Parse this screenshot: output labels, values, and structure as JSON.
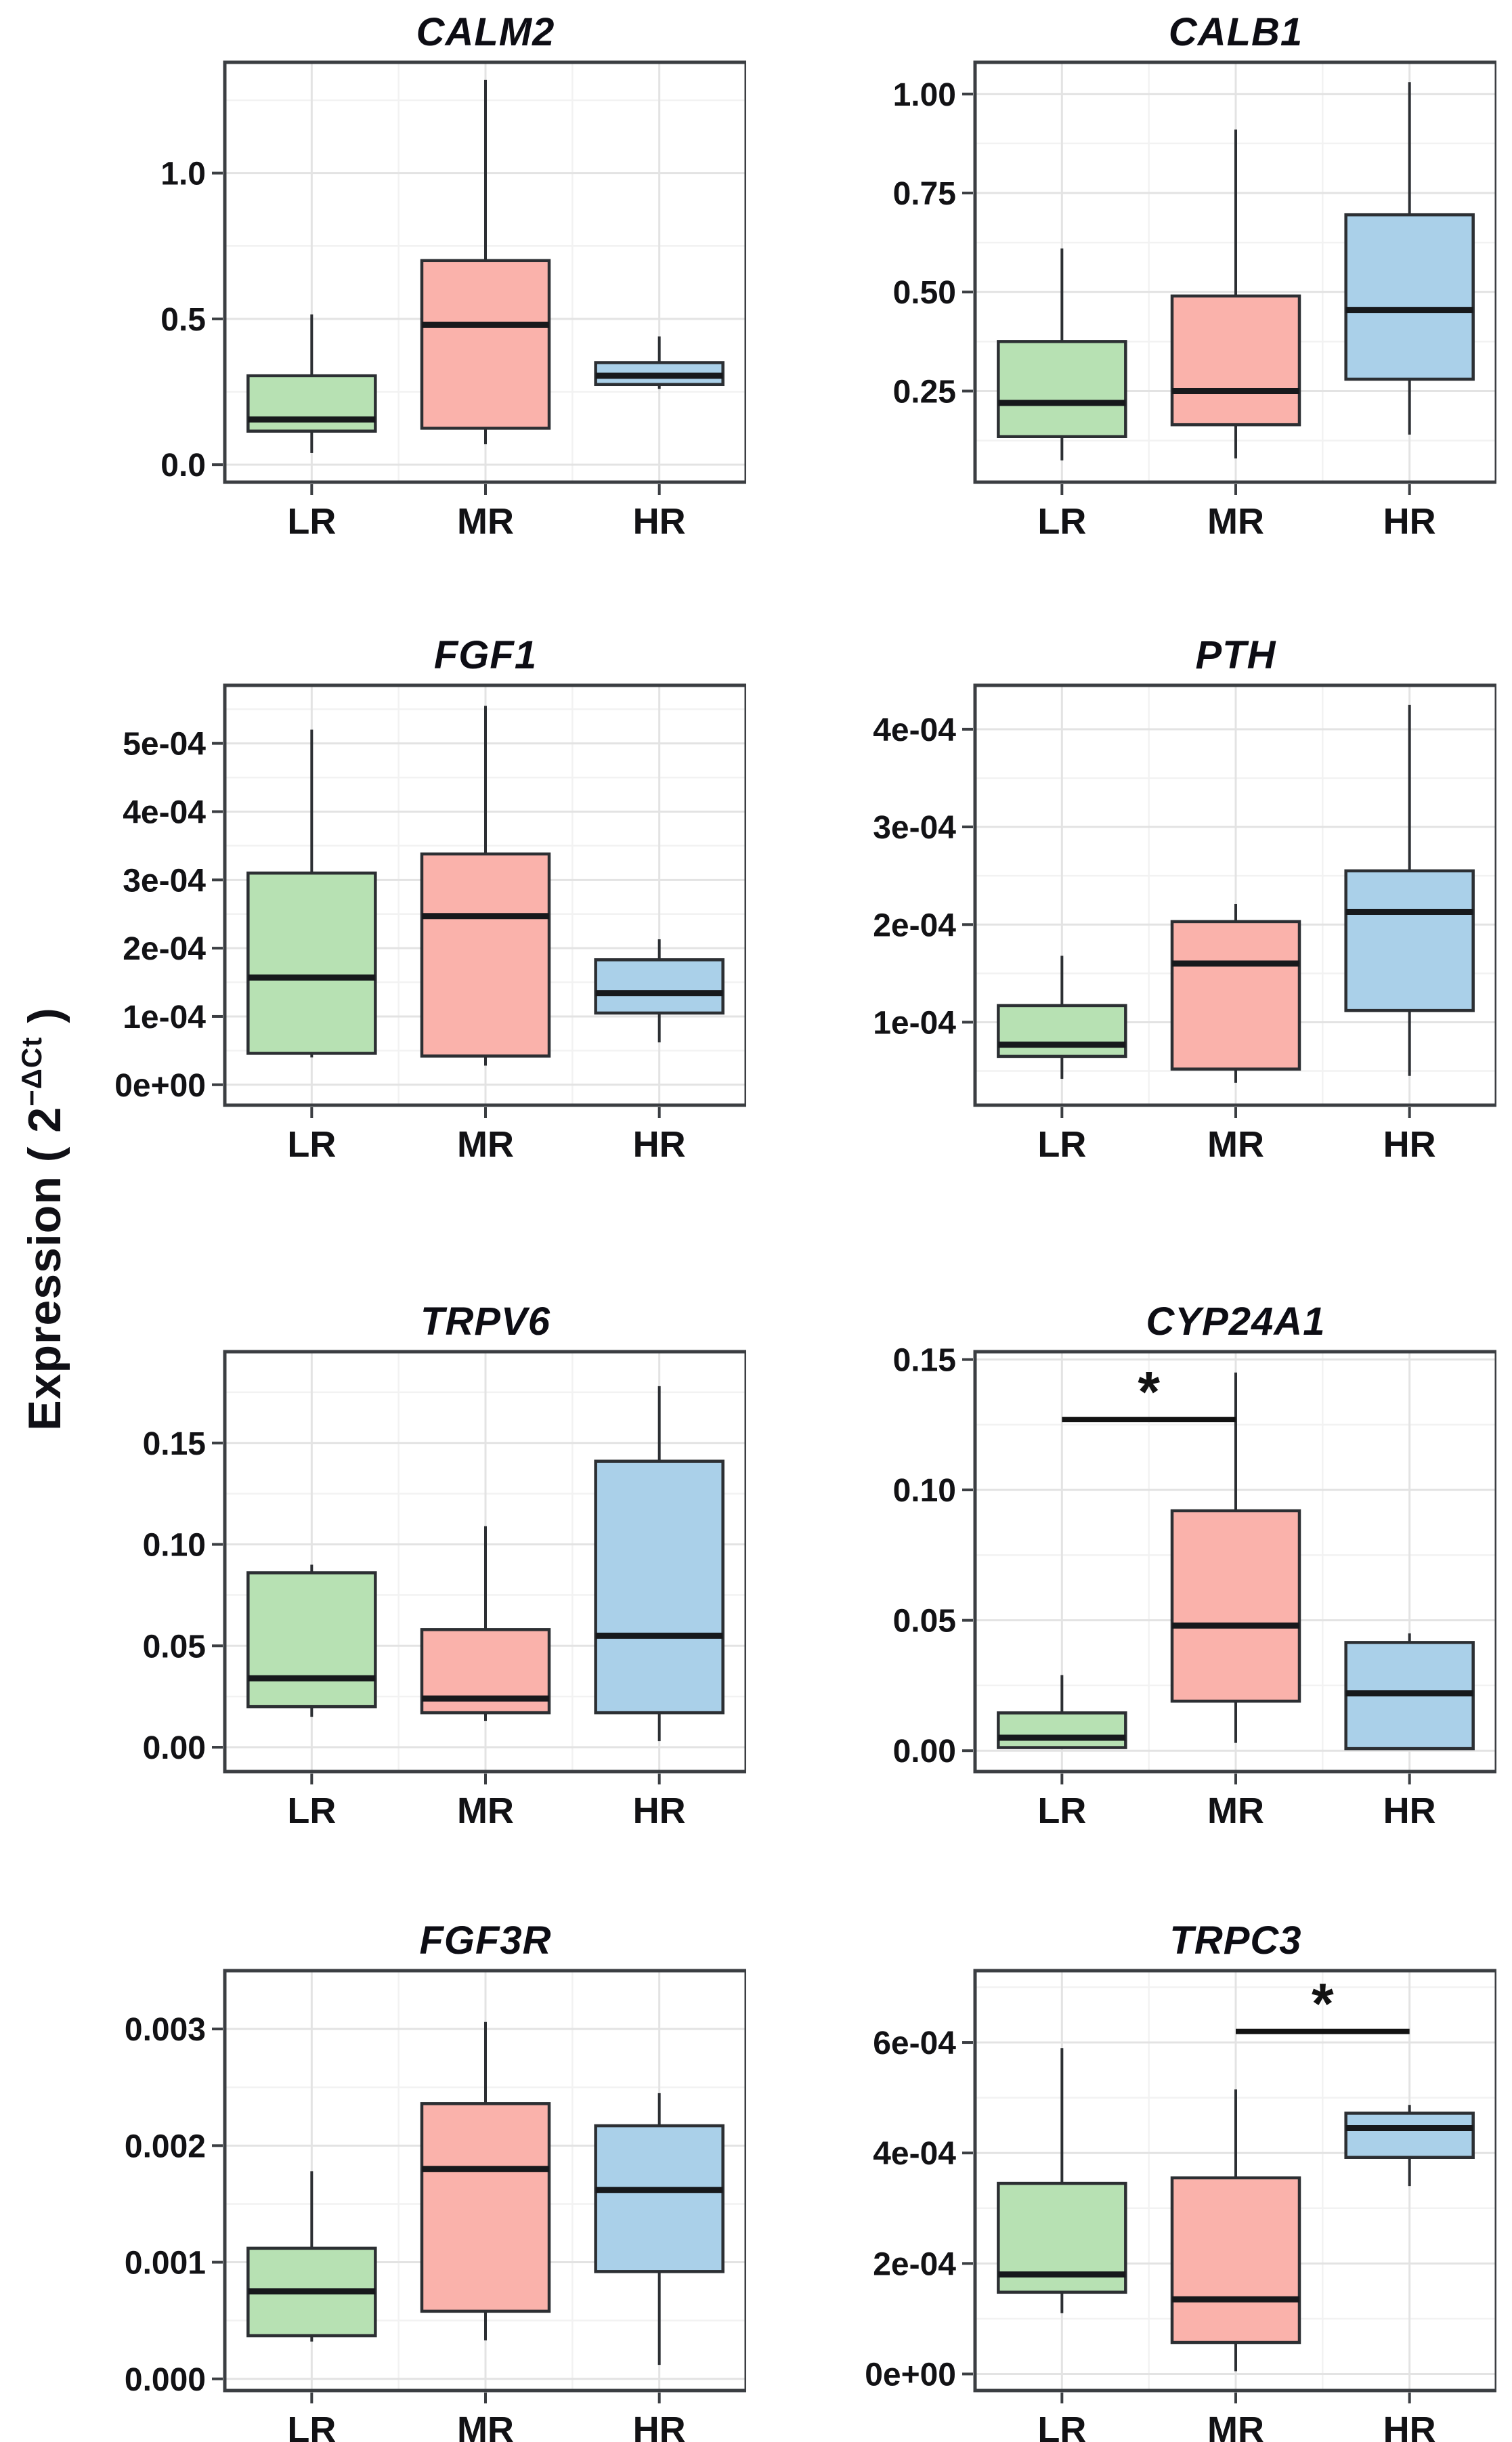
{
  "figure_type": "boxplot-grid",
  "ylabel": {
    "prefix": "Expression ( 2",
    "sup": "−ΔCt",
    "suffix": " )"
  },
  "colors": {
    "LR": "#b7e1b3",
    "MR": "#fab2ab",
    "HR": "#aad0e9",
    "panel_bg": "#ffffff",
    "grid_major": "#e3e3e3",
    "grid_minor": "#f2f2f2",
    "panel_border": "#3b3e42",
    "box_stroke": "#2c2f33",
    "median": "#17191c",
    "text": "#121215",
    "significance": "#121212"
  },
  "chart_data": [
    {
      "type": "box",
      "title": "CALM2",
      "categories": [
        "LR",
        "MR",
        "HR"
      ],
      "ylim": [
        -0.06,
        1.38
      ],
      "yticks": [
        {
          "v": 0.0,
          "label": "0.0"
        },
        {
          "v": 0.5,
          "label": "0.5"
        },
        {
          "v": 1.0,
          "label": "1.0"
        }
      ],
      "boxes": [
        {
          "category": "LR",
          "whisker_low": 0.04,
          "q1": 0.115,
          "median": 0.155,
          "q3": 0.305,
          "whisker_high": 0.515
        },
        {
          "category": "MR",
          "whisker_low": 0.07,
          "q1": 0.125,
          "median": 0.48,
          "q3": 0.7,
          "whisker_high": 1.32
        },
        {
          "category": "HR",
          "whisker_low": 0.26,
          "q1": 0.275,
          "median": 0.305,
          "q3": 0.35,
          "whisker_high": 0.44
        }
      ]
    },
    {
      "type": "box",
      "title": "CALB1",
      "categories": [
        "LR",
        "MR",
        "HR"
      ],
      "ylim": [
        0.02,
        1.08
      ],
      "yticks": [
        {
          "v": 0.25,
          "label": "0.25"
        },
        {
          "v": 0.5,
          "label": "0.50"
        },
        {
          "v": 0.75,
          "label": "0.75"
        },
        {
          "v": 1.0,
          "label": "1.00"
        }
      ],
      "boxes": [
        {
          "category": "LR",
          "whisker_low": 0.075,
          "q1": 0.135,
          "median": 0.22,
          "q3": 0.375,
          "whisker_high": 0.61
        },
        {
          "category": "MR",
          "whisker_low": 0.08,
          "q1": 0.165,
          "median": 0.25,
          "q3": 0.49,
          "whisker_high": 0.91
        },
        {
          "category": "HR",
          "whisker_low": 0.14,
          "q1": 0.28,
          "median": 0.455,
          "q3": 0.695,
          "whisker_high": 1.03
        }
      ]
    },
    {
      "type": "box",
      "title": "FGF1",
      "categories": [
        "LR",
        "MR",
        "HR"
      ],
      "ylim": [
        -3e-05,
        0.000585
      ],
      "yticks": [
        {
          "v": 0.0,
          "label": "0e+00"
        },
        {
          "v": 0.0001,
          "label": "1e-04"
        },
        {
          "v": 0.0002,
          "label": "2e-04"
        },
        {
          "v": 0.0003,
          "label": "3e-04"
        },
        {
          "v": 0.0004,
          "label": "4e-04"
        },
        {
          "v": 0.0005,
          "label": "5e-04"
        }
      ],
      "boxes": [
        {
          "category": "LR",
          "whisker_low": 4e-05,
          "q1": 4.6e-05,
          "median": 0.000157,
          "q3": 0.00031,
          "whisker_high": 0.00052
        },
        {
          "category": "MR",
          "whisker_low": 2.8e-05,
          "q1": 4.2e-05,
          "median": 0.000247,
          "q3": 0.000338,
          "whisker_high": 0.000555
        },
        {
          "category": "HR",
          "whisker_low": 6.2e-05,
          "q1": 0.000105,
          "median": 0.000134,
          "q3": 0.000183,
          "whisker_high": 0.000213
        }
      ]
    },
    {
      "type": "box",
      "title": "PTH",
      "categories": [
        "LR",
        "MR",
        "HR"
      ],
      "ylim": [
        1.5e-05,
        0.000445
      ],
      "yticks": [
        {
          "v": 0.0001,
          "label": "1e-04"
        },
        {
          "v": 0.0002,
          "label": "2e-04"
        },
        {
          "v": 0.0003,
          "label": "3e-04"
        },
        {
          "v": 0.0004,
          "label": "4e-04"
        }
      ],
      "boxes": [
        {
          "category": "LR",
          "whisker_low": 4.2e-05,
          "q1": 6.5e-05,
          "median": 7.7e-05,
          "q3": 0.000117,
          "whisker_high": 0.000168
        },
        {
          "category": "MR",
          "whisker_low": 3.8e-05,
          "q1": 5.2e-05,
          "median": 0.00016,
          "q3": 0.000203,
          "whisker_high": 0.000221
        },
        {
          "category": "HR",
          "whisker_low": 4.5e-05,
          "q1": 0.000112,
          "median": 0.000213,
          "q3": 0.000255,
          "whisker_high": 0.000425
        }
      ]
    },
    {
      "type": "box",
      "title": "TRPV6",
      "categories": [
        "LR",
        "MR",
        "HR"
      ],
      "ylim": [
        -0.012,
        0.195
      ],
      "yticks": [
        {
          "v": 0.0,
          "label": "0.00"
        },
        {
          "v": 0.05,
          "label": "0.05"
        },
        {
          "v": 0.1,
          "label": "0.10"
        },
        {
          "v": 0.15,
          "label": "0.15"
        }
      ],
      "boxes": [
        {
          "category": "LR",
          "whisker_low": 0.015,
          "q1": 0.02,
          "median": 0.034,
          "q3": 0.086,
          "whisker_high": 0.09
        },
        {
          "category": "MR",
          "whisker_low": 0.013,
          "q1": 0.017,
          "median": 0.024,
          "q3": 0.058,
          "whisker_high": 0.109
        },
        {
          "category": "HR",
          "whisker_low": 0.003,
          "q1": 0.017,
          "median": 0.055,
          "q3": 0.141,
          "whisker_high": 0.178
        }
      ]
    },
    {
      "type": "box",
      "title": "CYP24A1",
      "categories": [
        "LR",
        "MR",
        "HR"
      ],
      "ylim": [
        -0.008,
        0.153
      ],
      "yticks": [
        {
          "v": 0.0,
          "label": "0.00"
        },
        {
          "v": 0.05,
          "label": "0.05"
        },
        {
          "v": 0.1,
          "label": "0.10"
        },
        {
          "v": 0.15,
          "label": "0.15"
        }
      ],
      "boxes": [
        {
          "category": "LR",
          "whisker_low": 0.0008,
          "q1": 0.0012,
          "median": 0.005,
          "q3": 0.0145,
          "whisker_high": 0.029
        },
        {
          "category": "MR",
          "whisker_low": 0.003,
          "q1": 0.019,
          "median": 0.048,
          "q3": 0.092,
          "whisker_high": 0.145
        },
        {
          "category": "HR",
          "whisker_low": 0.0005,
          "q1": 0.0008,
          "median": 0.022,
          "q3": 0.0415,
          "whisker_high": 0.045
        }
      ],
      "significance": {
        "from": "LR",
        "to": "MR",
        "y": 0.127,
        "label": "*"
      }
    },
    {
      "type": "box",
      "title": "FGF3R",
      "categories": [
        "LR",
        "MR",
        "HR"
      ],
      "ylim": [
        -0.0001,
        0.0035
      ],
      "yticks": [
        {
          "v": 0.0,
          "label": "0.000"
        },
        {
          "v": 0.001,
          "label": "0.001"
        },
        {
          "v": 0.002,
          "label": "0.002"
        },
        {
          "v": 0.003,
          "label": "0.003"
        }
      ],
      "boxes": [
        {
          "category": "LR",
          "whisker_low": 0.00032,
          "q1": 0.00037,
          "median": 0.00075,
          "q3": 0.00112,
          "whisker_high": 0.00178
        },
        {
          "category": "MR",
          "whisker_low": 0.00033,
          "q1": 0.00058,
          "median": 0.0018,
          "q3": 0.00236,
          "whisker_high": 0.00306
        },
        {
          "category": "HR",
          "whisker_low": 0.00012,
          "q1": 0.00092,
          "median": 0.00162,
          "q3": 0.00217,
          "whisker_high": 0.00245
        }
      ]
    },
    {
      "type": "box",
      "title": "TRPC3",
      "categories": [
        "LR",
        "MR",
        "HR"
      ],
      "ylim": [
        -3e-05,
        0.00073
      ],
      "yticks": [
        {
          "v": 0.0,
          "label": "0e+00"
        },
        {
          "v": 0.0002,
          "label": "2e-04"
        },
        {
          "v": 0.0004,
          "label": "4e-04"
        },
        {
          "v": 0.0006,
          "label": "6e-04"
        }
      ],
      "boxes": [
        {
          "category": "LR",
          "whisker_low": 0.00011,
          "q1": 0.000148,
          "median": 0.00018,
          "q3": 0.000345,
          "whisker_high": 0.00059
        },
        {
          "category": "MR",
          "whisker_low": 5e-06,
          "q1": 5.7e-05,
          "median": 0.000135,
          "q3": 0.000355,
          "whisker_high": 0.000515
        },
        {
          "category": "HR",
          "whisker_low": 0.00034,
          "q1": 0.000392,
          "median": 0.000445,
          "q3": 0.000472,
          "whisker_high": 0.000487
        }
      ],
      "significance": {
        "from": "MR",
        "to": "HR",
        "y": 0.00062,
        "label": "*"
      }
    }
  ]
}
